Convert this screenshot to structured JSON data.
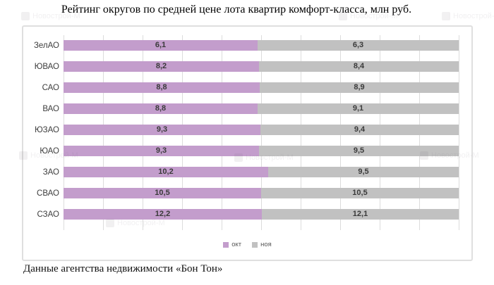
{
  "title": "Рейтинг округов по средней цене лота квартир комфорт-класса, млн руб.",
  "source": "Данные агентства недвижимости «Бон Тон»",
  "watermark": {
    "text": "Новострой-М"
  },
  "colors": {
    "okt": "#c39dcc",
    "noy": "#c1c1c1",
    "gridline": "#dcdcdc",
    "frame_border": "#dfdfdf",
    "value_text": "#3a3a3a",
    "category_text": "#3d3d3d",
    "legend_text": "#575757"
  },
  "chart_data": {
    "type": "bar",
    "orientation": "horizontal",
    "stacking": "100%-stacked",
    "title": "Рейтинг округов по средней цене лота квартир комфорт-класса, млн руб.",
    "xlabel": "",
    "ylabel": "",
    "axis": {
      "percent_min": 0,
      "percent_max": 1,
      "gridline_step": 0.1,
      "tick_labels_hidden": true
    },
    "grid": "vertical-on",
    "legend_position": "bottom-center",
    "decimal_separator": ",",
    "categories": [
      "ЗелАО",
      "ЮВАО",
      "САО",
      "ВАО",
      "ЮЗАО",
      "ЮАО",
      "ЗАО",
      "СВАО",
      "СЗАО"
    ],
    "series": [
      {
        "name": "окт",
        "color": "#c39dcc",
        "values": [
          6.1,
          8.2,
          8.8,
          8.8,
          9.3,
          9.3,
          10.2,
          10.5,
          12.2
        ]
      },
      {
        "name": "ноя",
        "color": "#c1c1c1",
        "values": [
          6.3,
          8.4,
          8.9,
          9.1,
          9.4,
          9.5,
          9.5,
          10.5,
          12.1
        ]
      }
    ]
  }
}
